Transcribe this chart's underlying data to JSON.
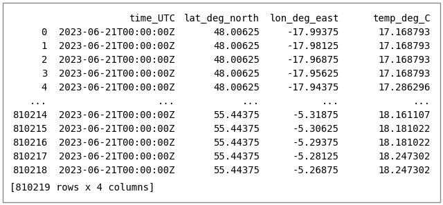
{
  "header": [
    "time_UTC",
    "lat_deg_north",
    "lon_deg_east",
    "temp_deg_C"
  ],
  "rows": [
    [
      "0",
      "2023-06-21T00:00:00Z",
      "48.00625",
      "-17.99375",
      "17.168793"
    ],
    [
      "1",
      "2023-06-21T00:00:00Z",
      "48.00625",
      "-17.98125",
      "17.168793"
    ],
    [
      "2",
      "2023-06-21T00:00:00Z",
      "48.00625",
      "-17.96875",
      "17.168793"
    ],
    [
      "3",
      "2023-06-21T00:00:00Z",
      "48.00625",
      "-17.95625",
      "17.168793"
    ],
    [
      "4",
      "2023-06-21T00:00:00Z",
      "48.00625",
      "-17.94375",
      "17.286296"
    ],
    [
      "...",
      "...",
      "...",
      "...",
      "..."
    ],
    [
      "810214",
      "2023-06-21T00:00:00Z",
      "55.44375",
      "-5.31875",
      "18.161107"
    ],
    [
      "810215",
      "2023-06-21T00:00:00Z",
      "55.44375",
      "-5.30625",
      "18.181022"
    ],
    [
      "810216",
      "2023-06-21T00:00:00Z",
      "55.44375",
      "-5.29375",
      "18.181022"
    ],
    [
      "810217",
      "2023-06-21T00:00:00Z",
      "55.44375",
      "-5.28125",
      "18.247302"
    ],
    [
      "810218",
      "2023-06-21T00:00:00Z",
      "55.44375",
      "-5.26875",
      "18.247302"
    ]
  ],
  "footer": "[810219 rows x 4 columns]",
  "bg_color": "#ffffff",
  "border_color": "#888888",
  "font_size": 10.0,
  "text_color": "#000000",
  "fig_width": 6.4,
  "fig_height": 2.97,
  "dpi": 100
}
